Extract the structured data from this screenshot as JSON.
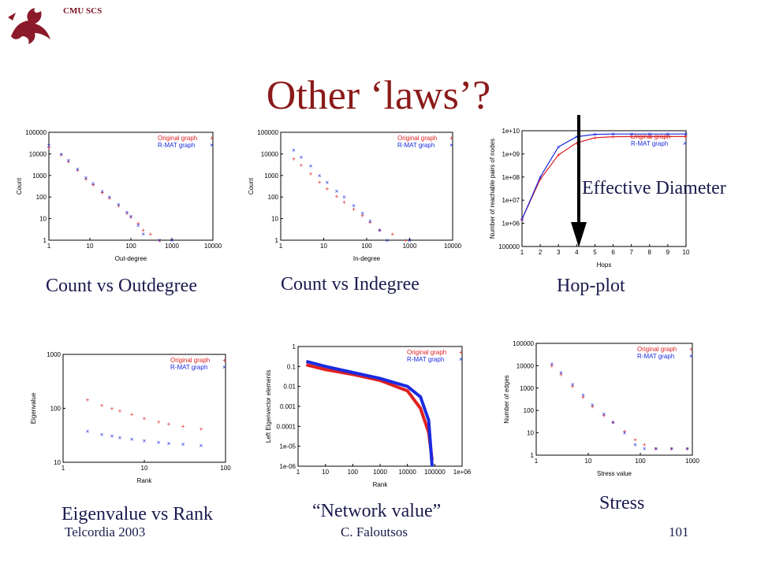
{
  "header": {
    "org": "CMU SCS"
  },
  "slide": {
    "title": "Other ‘laws’?",
    "annotation": "Effective Diameter",
    "footer_left": "Telcordia 2003",
    "footer_center": "C. Faloutsos",
    "footer_right": "101"
  },
  "colors": {
    "original": "#e02020",
    "rmat": "#1a2be0",
    "title": "#8b1a1a",
    "text": "#1a1a4e"
  },
  "icons": {
    "logo": "cmu-griffin-logo-icon",
    "arrow": "down-arrow-icon"
  },
  "chart_data": [
    {
      "id": "outdegree",
      "type": "scatter",
      "caption": "Count vs Outdegree",
      "xlabel": "Out-degree",
      "ylabel": "Count",
      "xlog": true,
      "ylog": true,
      "xlim": [
        1,
        10000
      ],
      "ylim": [
        1,
        100000
      ],
      "xticks": [
        "1",
        "10",
        "100",
        "1000",
        "10000"
      ],
      "yticks": [
        "1",
        "10",
        "100",
        "1000",
        "10000",
        "100000"
      ],
      "legend": [
        "Original graph",
        "R-MAT graph"
      ],
      "series": [
        {
          "name": "Original graph",
          "points": [
            [
              1,
              20000
            ],
            [
              2,
              9000
            ],
            [
              3,
              4500
            ],
            [
              5,
              1800
            ],
            [
              8,
              700
            ],
            [
              12,
              380
            ],
            [
              20,
              160
            ],
            [
              30,
              90
            ],
            [
              50,
              40
            ],
            [
              80,
              18
            ],
            [
              100,
              12
            ],
            [
              150,
              6
            ],
            [
              200,
              3
            ],
            [
              300,
              2
            ],
            [
              500,
              1
            ]
          ]
        },
        {
          "name": "R-MAT graph",
          "points": [
            [
              1,
              25000
            ],
            [
              2,
              10000
            ],
            [
              3,
              5000
            ],
            [
              5,
              2000
            ],
            [
              8,
              800
            ],
            [
              12,
              420
            ],
            [
              20,
              180
            ],
            [
              30,
              100
            ],
            [
              50,
              45
            ],
            [
              80,
              20
            ],
            [
              100,
              13
            ],
            [
              150,
              5
            ],
            [
              200,
              2
            ],
            [
              500,
              1
            ],
            [
              1000,
              1
            ]
          ]
        }
      ]
    },
    {
      "id": "indegree",
      "type": "scatter",
      "caption": "Count vs Indegree",
      "xlabel": "In-degree",
      "ylabel": "Count",
      "xlog": true,
      "ylog": true,
      "xlim": [
        1,
        10000
      ],
      "ylim": [
        1,
        100000
      ],
      "xticks": [
        "1",
        "10",
        "100",
        "1000",
        "10000"
      ],
      "yticks": [
        "1",
        "10",
        "100",
        "1000",
        "10000",
        "100000"
      ],
      "legend": [
        "Original graph",
        "R-MAT graph"
      ],
      "series": [
        {
          "name": "Original graph",
          "points": [
            [
              2,
              6000
            ],
            [
              3,
              3000
            ],
            [
              5,
              1200
            ],
            [
              8,
              500
            ],
            [
              12,
              250
            ],
            [
              20,
              110
            ],
            [
              30,
              60
            ],
            [
              50,
              28
            ],
            [
              80,
              14
            ],
            [
              120,
              7
            ],
            [
              200,
              3
            ],
            [
              400,
              2
            ],
            [
              800,
              1
            ]
          ]
        },
        {
          "name": "R-MAT graph",
          "points": [
            [
              2,
              15000
            ],
            [
              3,
              7000
            ],
            [
              5,
              2800
            ],
            [
              8,
              1000
            ],
            [
              12,
              480
            ],
            [
              20,
              190
            ],
            [
              30,
              100
            ],
            [
              50,
              40
            ],
            [
              80,
              18
            ],
            [
              120,
              8
            ],
            [
              200,
              3
            ],
            [
              300,
              1
            ],
            [
              1000,
              1
            ]
          ]
        }
      ]
    },
    {
      "id": "hopplot",
      "type": "line",
      "caption": "Hop-plot",
      "xlabel": "Hops",
      "ylabel": "Number of reachable pairs of nodes",
      "xlog": false,
      "ylog": true,
      "xlim": [
        1,
        10
      ],
      "ylim": [
        100000,
        10000000000
      ],
      "xticks": [
        "1",
        "2",
        "3",
        "4",
        "5",
        "6",
        "7",
        "8",
        "9",
        "10"
      ],
      "yticks": [
        "100000",
        "1e+06",
        "1e+07",
        "1e+08",
        "1e+09",
        "1e+10"
      ],
      "legend": [
        "Original graph",
        "R-MAT graph"
      ],
      "series": [
        {
          "name": "Original graph",
          "points": [
            [
              1,
              1500000
            ],
            [
              2,
              80000000
            ],
            [
              3,
              900000000
            ],
            [
              4,
              3000000000
            ],
            [
              5,
              5000000000
            ],
            [
              6,
              5500000000
            ],
            [
              7,
              5600000000
            ],
            [
              8,
              5600000000
            ],
            [
              9,
              5600000000
            ],
            [
              10,
              5600000000
            ]
          ]
        },
        {
          "name": "R-MAT graph",
          "points": [
            [
              1,
              1500000
            ],
            [
              2,
              100000000
            ],
            [
              3,
              2000000000
            ],
            [
              4,
              5500000000
            ],
            [
              5,
              7000000000
            ],
            [
              6,
              7200000000
            ],
            [
              7,
              7200000000
            ],
            [
              8,
              7200000000
            ],
            [
              9,
              7200000000
            ],
            [
              10,
              7200000000
            ]
          ]
        }
      ]
    },
    {
      "id": "eigen",
      "type": "scatter",
      "caption": "Eigenvalue vs Rank",
      "xlabel": "Rank",
      "ylabel": "Eigenvalue",
      "xlog": true,
      "ylog": true,
      "xlim": [
        1,
        100
      ],
      "ylim": [
        10,
        1000
      ],
      "xticks": [
        "1",
        "10",
        "100"
      ],
      "yticks": [
        "10",
        "100",
        "1000"
      ],
      "legend": [
        "Original graph",
        "R-MAT graph"
      ],
      "series": [
        {
          "name": "Original graph",
          "points": [
            [
              2,
              145
            ],
            [
              3,
              115
            ],
            [
              4,
              100
            ],
            [
              5,
              90
            ],
            [
              7,
              78
            ],
            [
              10,
              66
            ],
            [
              15,
              56
            ],
            [
              20,
              52
            ],
            [
              30,
              47
            ],
            [
              50,
              42
            ]
          ]
        },
        {
          "name": "R-MAT graph",
          "points": [
            [
              2,
              38
            ],
            [
              3,
              33
            ],
            [
              4,
              31
            ],
            [
              5,
              29
            ],
            [
              7,
              27
            ],
            [
              10,
              25
            ],
            [
              15,
              23.5
            ],
            [
              20,
              22.5
            ],
            [
              30,
              21.5
            ],
            [
              50,
              20.5
            ]
          ]
        }
      ]
    },
    {
      "id": "network",
      "type": "line",
      "caption": "“Network value”",
      "xlabel": "Rank",
      "ylabel": "Left Eigenvector elements",
      "xlog": true,
      "ylog": true,
      "xlim": [
        1,
        1000000
      ],
      "ylim": [
        1e-06,
        1
      ],
      "xticks": [
        "1",
        "10",
        "100",
        "1000",
        "10000",
        "100000",
        "1e+06"
      ],
      "yticks": [
        "1e-06",
        "1e-05",
        "0.0001",
        "0.001",
        "0.01",
        "0.1",
        "1"
      ],
      "legend": [
        "Original graph",
        "R-MAT graph"
      ],
      "series": [
        {
          "name": "Original graph",
          "points": [
            [
              2,
              0.12
            ],
            [
              10,
              0.07
            ],
            [
              100,
              0.04
            ],
            [
              1000,
              0.02
            ],
            [
              10000,
              0.006
            ],
            [
              30000,
              0.0008
            ],
            [
              60000,
              5e-05
            ],
            [
              80000,
              2e-06
            ]
          ]
        },
        {
          "name": "R-MAT graph",
          "points": [
            [
              2,
              0.18
            ],
            [
              10,
              0.1
            ],
            [
              100,
              0.05
            ],
            [
              1000,
              0.025
            ],
            [
              10000,
              0.01
            ],
            [
              30000,
              0.003
            ],
            [
              60000,
              0.0002
            ],
            [
              80000,
              1e-06
            ]
          ]
        }
      ]
    },
    {
      "id": "stress",
      "type": "scatter",
      "caption": "Stress",
      "xlabel": "Stress value",
      "ylabel": "Number of edges",
      "xlog": true,
      "ylog": true,
      "xlim": [
        1,
        1000
      ],
      "ylim": [
        1,
        100000
      ],
      "xticks": [
        "1",
        "10",
        "100",
        "1000"
      ],
      "yticks": [
        "1",
        "10",
        "100",
        "1000",
        "10000",
        "100000"
      ],
      "legend": [
        "Original graph",
        "R-MAT graph"
      ],
      "series": [
        {
          "name": "Original graph",
          "points": [
            [
              2,
              10000
            ],
            [
              3,
              4000
            ],
            [
              5,
              1200
            ],
            [
              8,
              400
            ],
            [
              12,
              150
            ],
            [
              20,
              60
            ],
            [
              30,
              30
            ],
            [
              50,
              12
            ],
            [
              80,
              5
            ],
            [
              120,
              3
            ],
            [
              200,
              2
            ],
            [
              400,
              2
            ],
            [
              800,
              2
            ]
          ]
        },
        {
          "name": "R-MAT graph",
          "points": [
            [
              2,
              12000
            ],
            [
              3,
              5000
            ],
            [
              5,
              1500
            ],
            [
              8,
              500
            ],
            [
              12,
              180
            ],
            [
              20,
              70
            ],
            [
              30,
              30
            ],
            [
              50,
              10
            ],
            [
              80,
              3
            ],
            [
              120,
              2
            ],
            [
              200,
              2
            ],
            [
              400,
              2
            ],
            [
              800,
              2
            ]
          ]
        }
      ]
    }
  ]
}
